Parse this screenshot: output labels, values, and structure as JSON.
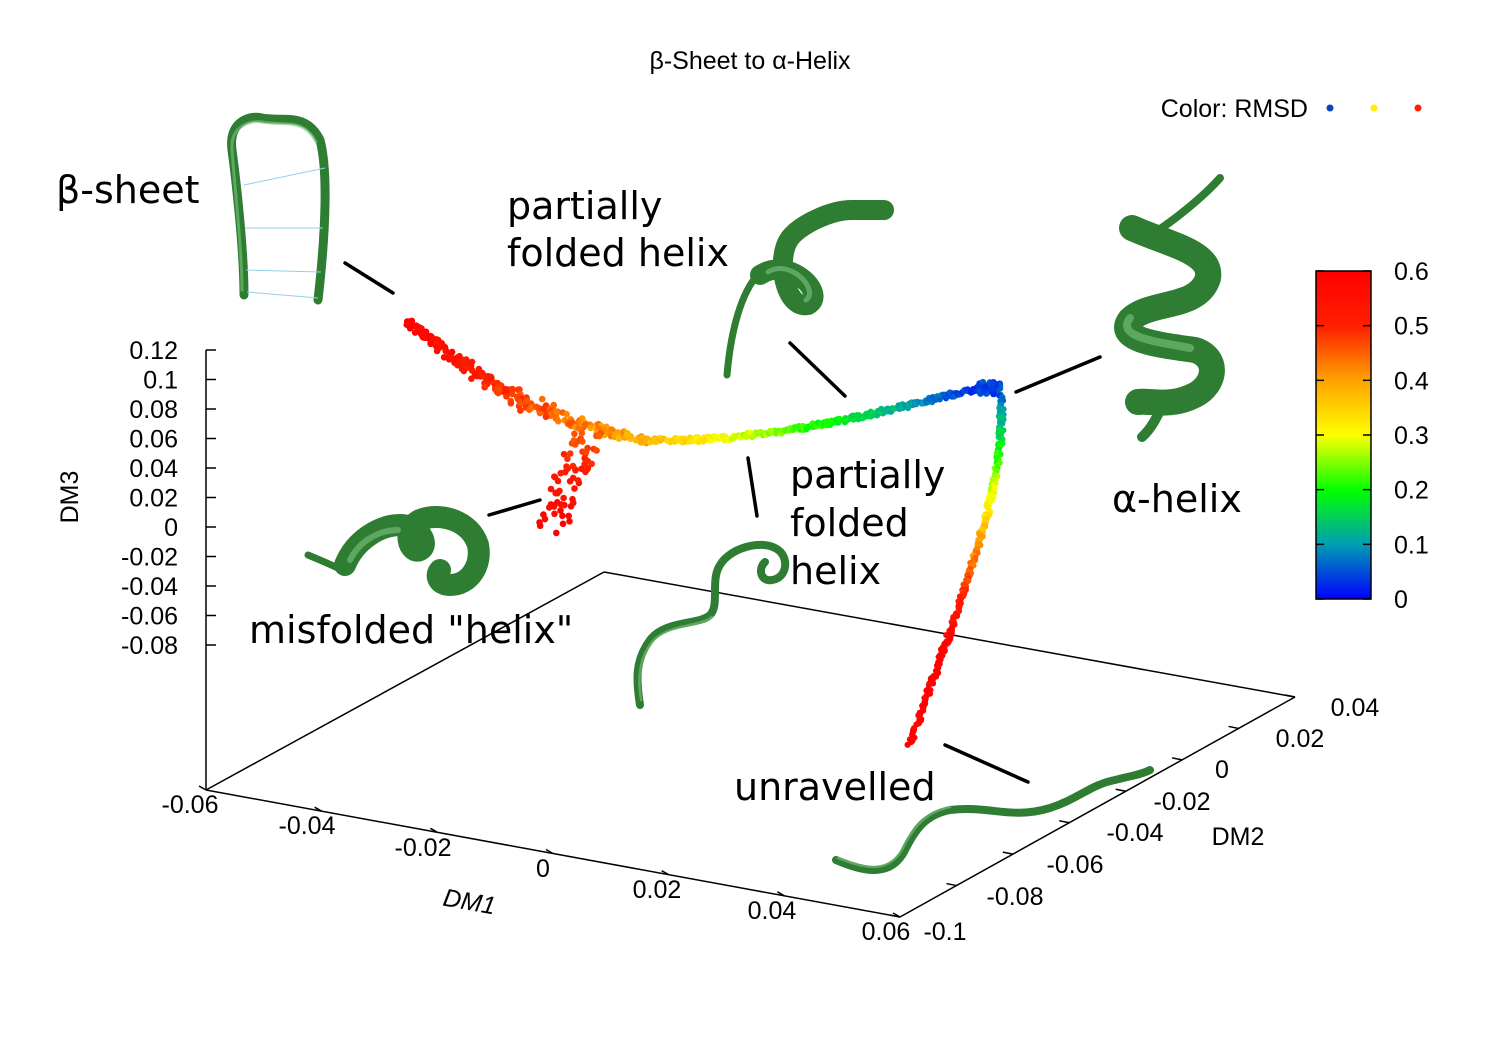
{
  "chart_data": {
    "type": "scatter",
    "title": "β-Sheet to α-Helix",
    "color_legend_label": "Color: RMSD",
    "colorbar": {
      "ticks": [
        "0.6",
        "0.5",
        "0.4",
        "0.3",
        "0.2",
        "0.1",
        "0"
      ],
      "range": [
        0,
        0.6
      ],
      "colormap": [
        "#0000ff",
        "#00a0a0",
        "#00ff00",
        "#ffff00",
        "#ffa000",
        "#ff0000"
      ]
    },
    "axes": {
      "x": {
        "label": "DM1",
        "range": [
          -0.06,
          0.06
        ],
        "ticks": [
          "-0.06",
          "-0.04",
          "-0.02",
          "0",
          "0.02",
          "0.04",
          "0.06"
        ]
      },
      "y": {
        "label": "DM2",
        "range": [
          -0.1,
          0.04
        ],
        "ticks": [
          "-0.1",
          "-0.08",
          "-0.06",
          "-0.04",
          "-0.02",
          "0",
          "0.02",
          "0.04"
        ]
      },
      "z": {
        "label": "DM3",
        "range": [
          -0.08,
          0.12
        ],
        "ticks": [
          "0.12",
          "0.1",
          "0.08",
          "0.06",
          "0.04",
          "0.02",
          "0",
          "-0.02",
          "-0.04",
          "-0.06",
          "-0.08"
        ]
      }
    },
    "trajectory_segments": [
      {
        "name": "beta-sheet branch",
        "rmsd_start": 0.6,
        "rmsd_end": 0.38
      },
      {
        "name": "misfolded branch",
        "rmsd_start": 0.6,
        "rmsd_end": 0.45
      },
      {
        "name": "folding path",
        "rmsd_start": 0.38,
        "rmsd_end": 0.0
      },
      {
        "name": "unravelled branch",
        "rmsd_start": 0.05,
        "rmsd_end": 0.6
      }
    ],
    "annotations": {
      "beta_sheet": "β-sheet",
      "partially_folded_1_line1": "partially",
      "partially_folded_1_line2": "folded helix",
      "alpha_helix": "α-helix",
      "partially_folded_2_line1": "partially",
      "partially_folded_2_line2": "folded",
      "partially_folded_2_line3": "helix",
      "misfolded": "misfolded \"helix\"",
      "unravelled": "unravelled"
    },
    "legend_dot_colors": [
      "#1040c0",
      "#ffee00",
      "#ff2000"
    ],
    "grid": false
  }
}
